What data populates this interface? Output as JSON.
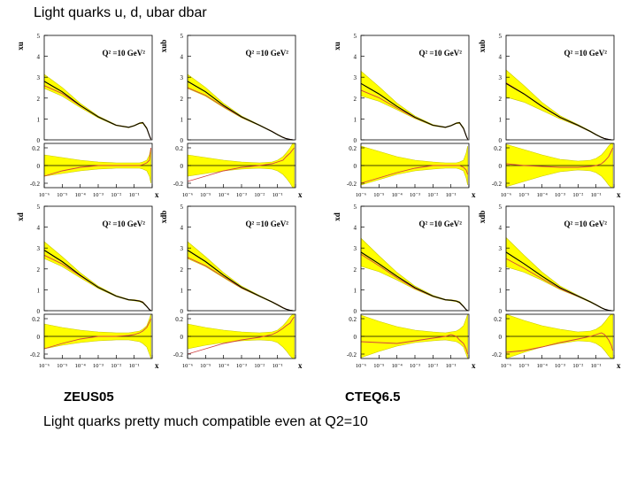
{
  "title": "Light quarks u, d, ubar dbar",
  "captions": {
    "left": "ZEUS05",
    "right": "CTEQ6.5"
  },
  "note": "Light quarks pretty much compatible even at Q2=10",
  "colors": {
    "band": "#ffff00",
    "band_edge": "#c8c800",
    "central": "#000000",
    "ref": "#d04040"
  },
  "chart_data": [
    {
      "type": "line",
      "group": "ZEUS05",
      "row": "top",
      "panel_type": "valence",
      "ylabel": "xu",
      "annotation": "Q² =10 GeV²",
      "xlabel": "x",
      "xscale": "log",
      "xlim": [
        1e-06,
        1
      ],
      "xticks": [
        "10⁻⁶",
        "10⁻⁵",
        "10⁻⁴",
        "10⁻³",
        "10⁻²",
        "10⁻¹",
        "1"
      ],
      "ylim": [
        0,
        5
      ],
      "yticks": [
        "0",
        "1",
        "2",
        "3",
        "4",
        "5"
      ],
      "ratio_ylim": [
        -0.25,
        0.25
      ],
      "ratio_yticks": [
        "0.2",
        "0",
        "-0.2"
      ],
      "x": [
        1e-06,
        1e-05,
        0.0001,
        0.001,
        0.01,
        0.05,
        0.1,
        0.2,
        0.3,
        0.5,
        0.7,
        0.85
      ],
      "central": [
        2.8,
        2.3,
        1.65,
        1.1,
        0.7,
        0.6,
        0.68,
        0.8,
        0.82,
        0.55,
        0.2,
        0.03
      ],
      "band_rel_lo": [
        0.12,
        0.09,
        0.06,
        0.04,
        0.03,
        0.03,
        0.03,
        0.03,
        0.04,
        0.06,
        0.12,
        0.2
      ],
      "band_rel_hi": [
        0.12,
        0.09,
        0.06,
        0.04,
        0.03,
        0.03,
        0.03,
        0.03,
        0.04,
        0.06,
        0.12,
        0.2
      ],
      "ref_ratio": [
        -0.12,
        -0.06,
        -0.02,
        0.0,
        0.0,
        0.0,
        0.0,
        0.0,
        0.01,
        0.03,
        0.06,
        0.2
      ]
    },
    {
      "type": "line",
      "group": "ZEUS05",
      "row": "top",
      "panel_type": "sea",
      "ylabel": "xub",
      "annotation": "Q² =10 GeV²",
      "xlabel": "x",
      "xscale": "log",
      "xlim": [
        1e-06,
        1
      ],
      "xticks": [
        "10⁻⁶",
        "10⁻⁵",
        "10⁻⁴",
        "10⁻³",
        "10⁻²",
        "10⁻¹",
        "1"
      ],
      "ylim": [
        0,
        5
      ],
      "yticks": [
        "0",
        "1",
        "2",
        "3",
        "4",
        "5"
      ],
      "ratio_ylim": [
        -0.25,
        0.25
      ],
      "ratio_yticks": [
        "0.2",
        "0",
        "-0.2"
      ],
      "x": [
        1e-06,
        1e-05,
        0.0001,
        0.001,
        0.01,
        0.05,
        0.1,
        0.2,
        0.3,
        0.5,
        0.7,
        0.85
      ],
      "central": [
        2.8,
        2.3,
        1.65,
        1.1,
        0.7,
        0.4,
        0.25,
        0.12,
        0.06,
        0.02,
        0.005,
        0.001
      ],
      "band_rel_lo": [
        0.12,
        0.09,
        0.06,
        0.04,
        0.03,
        0.04,
        0.06,
        0.1,
        0.14,
        0.2,
        0.25,
        0.25
      ],
      "band_rel_hi": [
        0.12,
        0.09,
        0.06,
        0.04,
        0.03,
        0.04,
        0.06,
        0.1,
        0.14,
        0.2,
        0.25,
        0.25
      ],
      "ref_ratio": [
        -0.18,
        -0.12,
        -0.06,
        -0.02,
        0.0,
        0.02,
        0.04,
        0.06,
        0.1,
        0.14,
        0.18,
        0.2
      ]
    },
    {
      "type": "line",
      "group": "ZEUS05",
      "row": "bottom",
      "panel_type": "valence",
      "ylabel": "xd",
      "annotation": "Q² =10 GeV²",
      "xlabel": "x",
      "xscale": "log",
      "xlim": [
        1e-06,
        1
      ],
      "xticks": [
        "10⁻⁶",
        "10⁻⁵",
        "10⁻⁴",
        "10⁻³",
        "10⁻²",
        "10⁻¹",
        "1"
      ],
      "ylim": [
        0,
        5
      ],
      "yticks": [
        "0",
        "1",
        "2",
        "3",
        "4",
        "5"
      ],
      "ratio_ylim": [
        -0.25,
        0.25
      ],
      "ratio_yticks": [
        "0.2",
        "0",
        "-0.2"
      ],
      "x": [
        1e-06,
        1e-05,
        0.0001,
        0.001,
        0.01,
        0.05,
        0.1,
        0.2,
        0.3,
        0.5,
        0.7,
        0.85
      ],
      "central": [
        2.9,
        2.35,
        1.7,
        1.12,
        0.7,
        0.52,
        0.5,
        0.46,
        0.4,
        0.2,
        0.05,
        0.01
      ],
      "band_rel_lo": [
        0.14,
        0.1,
        0.07,
        0.05,
        0.04,
        0.04,
        0.05,
        0.06,
        0.08,
        0.12,
        0.2,
        0.25
      ],
      "band_rel_hi": [
        0.14,
        0.1,
        0.07,
        0.05,
        0.04,
        0.04,
        0.05,
        0.06,
        0.08,
        0.12,
        0.2,
        0.25
      ],
      "ref_ratio": [
        -0.14,
        -0.08,
        -0.03,
        0.0,
        0.0,
        0.01,
        0.02,
        0.04,
        0.06,
        0.1,
        0.16,
        0.2
      ]
    },
    {
      "type": "line",
      "group": "ZEUS05",
      "row": "bottom",
      "panel_type": "sea",
      "ylabel": "xdb",
      "annotation": "Q² =10 GeV²",
      "xlabel": "x",
      "xscale": "log",
      "xlim": [
        1e-06,
        1
      ],
      "xticks": [
        "10⁻⁶",
        "10⁻⁵",
        "10⁻⁴",
        "10⁻³",
        "10⁻²",
        "10⁻¹",
        "1"
      ],
      "ylim": [
        0,
        5
      ],
      "yticks": [
        "0",
        "1",
        "2",
        "3",
        "4",
        "5"
      ],
      "ratio_ylim": [
        -0.25,
        0.25
      ],
      "ratio_yticks": [
        "0.2",
        "0",
        "-0.2"
      ],
      "x": [
        1e-06,
        1e-05,
        0.0001,
        0.001,
        0.01,
        0.05,
        0.1,
        0.2,
        0.3,
        0.5,
        0.7,
        0.85
      ],
      "central": [
        2.9,
        2.35,
        1.7,
        1.12,
        0.7,
        0.42,
        0.28,
        0.14,
        0.07,
        0.02,
        0.005,
        0.001
      ],
      "band_rel_lo": [
        0.14,
        0.1,
        0.07,
        0.05,
        0.04,
        0.05,
        0.07,
        0.12,
        0.16,
        0.22,
        0.25,
        0.25
      ],
      "band_rel_hi": [
        0.14,
        0.1,
        0.07,
        0.05,
        0.04,
        0.05,
        0.07,
        0.12,
        0.16,
        0.22,
        0.25,
        0.25
      ],
      "ref_ratio": [
        -0.2,
        -0.14,
        -0.08,
        -0.04,
        -0.01,
        0.02,
        0.05,
        0.09,
        0.12,
        0.15,
        0.2,
        0.22
      ]
    },
    {
      "type": "line",
      "group": "CTEQ6.5",
      "row": "top",
      "panel_type": "valence",
      "ylabel": "xu",
      "annotation": "Q² =10 GeV²",
      "xlabel": "x",
      "xscale": "log",
      "xlim": [
        1e-06,
        1
      ],
      "xticks": [
        "10⁻⁶",
        "10⁻⁵",
        "10⁻⁴",
        "10⁻³",
        "10⁻²",
        "10⁻¹",
        "1"
      ],
      "ylim": [
        0,
        5
      ],
      "yticks": [
        "0",
        "1",
        "2",
        "3",
        "4",
        "5"
      ],
      "ratio_ylim": [
        -0.25,
        0.25
      ],
      "ratio_yticks": [
        "0.2",
        "0",
        "-0.2"
      ],
      "x": [
        1e-06,
        1e-05,
        0.0001,
        0.001,
        0.01,
        0.05,
        0.1,
        0.2,
        0.3,
        0.5,
        0.7,
        0.85
      ],
      "central": [
        2.7,
        2.2,
        1.6,
        1.08,
        0.7,
        0.6,
        0.68,
        0.8,
        0.82,
        0.55,
        0.2,
        0.03
      ],
      "band_rel_lo": [
        0.22,
        0.16,
        0.1,
        0.06,
        0.04,
        0.03,
        0.03,
        0.03,
        0.04,
        0.06,
        0.14,
        0.22
      ],
      "band_rel_hi": [
        0.22,
        0.16,
        0.1,
        0.06,
        0.04,
        0.03,
        0.03,
        0.03,
        0.04,
        0.06,
        0.14,
        0.22
      ],
      "ref_ratio": [
        -0.2,
        -0.14,
        -0.08,
        -0.03,
        0.0,
        0.0,
        0.0,
        0.0,
        0.0,
        -0.02,
        -0.05,
        -0.1
      ]
    },
    {
      "type": "line",
      "group": "CTEQ6.5",
      "row": "top",
      "panel_type": "sea",
      "ylabel": "xub",
      "annotation": "Q² =10 GeV²",
      "xlabel": "x",
      "xscale": "log",
      "xlim": [
        1e-06,
        1
      ],
      "xticks": [
        "10⁻⁶",
        "10⁻⁵",
        "10⁻⁴",
        "10⁻³",
        "10⁻²",
        "10⁻¹",
        "1"
      ],
      "ylim": [
        0,
        5
      ],
      "yticks": [
        "0",
        "1",
        "2",
        "3",
        "4",
        "5"
      ],
      "ratio_ylim": [
        -0.25,
        0.25
      ],
      "ratio_yticks": [
        "0.2",
        "0",
        "-0.2"
      ],
      "x": [
        1e-06,
        1e-05,
        0.0001,
        0.001,
        0.01,
        0.05,
        0.1,
        0.2,
        0.3,
        0.5,
        0.7,
        0.85
      ],
      "central": [
        2.7,
        2.2,
        1.6,
        1.08,
        0.7,
        0.4,
        0.25,
        0.12,
        0.06,
        0.02,
        0.005,
        0.001
      ],
      "band_rel_lo": [
        0.24,
        0.18,
        0.12,
        0.07,
        0.05,
        0.06,
        0.08,
        0.12,
        0.16,
        0.22,
        0.25,
        0.25
      ],
      "band_rel_hi": [
        0.24,
        0.18,
        0.12,
        0.07,
        0.05,
        0.06,
        0.08,
        0.12,
        0.16,
        0.22,
        0.25,
        0.25
      ],
      "ref_ratio": [
        0.02,
        0.0,
        -0.01,
        -0.02,
        -0.02,
        -0.01,
        0.0,
        0.02,
        0.05,
        0.1,
        0.16,
        0.2
      ]
    },
    {
      "type": "line",
      "group": "CTEQ6.5",
      "row": "bottom",
      "panel_type": "valence",
      "ylabel": "xd",
      "annotation": "Q² =10 GeV²",
      "xlabel": "x",
      "xscale": "log",
      "xlim": [
        1e-06,
        1
      ],
      "xticks": [
        "10⁻⁶",
        "10⁻⁵",
        "10⁻⁴",
        "10⁻³",
        "10⁻²",
        "10⁻¹",
        "1"
      ],
      "ylim": [
        0,
        5
      ],
      "yticks": [
        "0",
        "1",
        "2",
        "3",
        "4",
        "5"
      ],
      "ratio_ylim": [
        -0.25,
        0.25
      ],
      "ratio_yticks": [
        "0.2",
        "0",
        "-0.2"
      ],
      "x": [
        1e-06,
        1e-05,
        0.0001,
        0.001,
        0.01,
        0.05,
        0.1,
        0.2,
        0.3,
        0.5,
        0.7,
        0.85
      ],
      "central": [
        2.8,
        2.25,
        1.65,
        1.1,
        0.7,
        0.52,
        0.5,
        0.46,
        0.4,
        0.2,
        0.05,
        0.01
      ],
      "band_rel_lo": [
        0.24,
        0.17,
        0.11,
        0.07,
        0.05,
        0.04,
        0.05,
        0.06,
        0.08,
        0.12,
        0.2,
        0.25
      ],
      "band_rel_hi": [
        0.24,
        0.17,
        0.11,
        0.07,
        0.05,
        0.04,
        0.05,
        0.06,
        0.08,
        0.12,
        0.2,
        0.25
      ],
      "ref_ratio": [
        -0.06,
        -0.07,
        -0.08,
        -0.05,
        -0.02,
        0.0,
        0.02,
        0.0,
        -0.04,
        -0.08,
        -0.14,
        -0.2
      ]
    },
    {
      "type": "line",
      "group": "CTEQ6.5",
      "row": "bottom",
      "panel_type": "sea",
      "ylabel": "xdb",
      "annotation": "Q² =10 GeV²",
      "xlabel": "x",
      "xscale": "log",
      "xlim": [
        1e-06,
        1
      ],
      "xticks": [
        "10⁻⁶",
        "10⁻⁵",
        "10⁻⁴",
        "10⁻³",
        "10⁻²",
        "10⁻¹",
        "1"
      ],
      "ylim": [
        0,
        5
      ],
      "yticks": [
        "0",
        "1",
        "2",
        "3",
        "4",
        "5"
      ],
      "ratio_ylim": [
        -0.25,
        0.25
      ],
      "ratio_yticks": [
        "0.2",
        "0",
        "-0.2"
      ],
      "x": [
        1e-06,
        1e-05,
        0.0001,
        0.001,
        0.01,
        0.05,
        0.1,
        0.2,
        0.3,
        0.5,
        0.7,
        0.85
      ],
      "central": [
        2.8,
        2.25,
        1.65,
        1.1,
        0.7,
        0.42,
        0.28,
        0.14,
        0.07,
        0.02,
        0.005,
        0.001
      ],
      "band_rel_lo": [
        0.25,
        0.18,
        0.12,
        0.08,
        0.05,
        0.06,
        0.08,
        0.12,
        0.16,
        0.22,
        0.25,
        0.25
      ],
      "band_rel_hi": [
        0.25,
        0.18,
        0.12,
        0.08,
        0.05,
        0.06,
        0.08,
        0.12,
        0.16,
        0.22,
        0.25,
        0.25
      ],
      "ref_ratio": [
        -0.18,
        -0.16,
        -0.12,
        -0.07,
        -0.03,
        0.0,
        0.02,
        0.04,
        0.02,
        -0.04,
        -0.1,
        -0.16
      ]
    }
  ]
}
